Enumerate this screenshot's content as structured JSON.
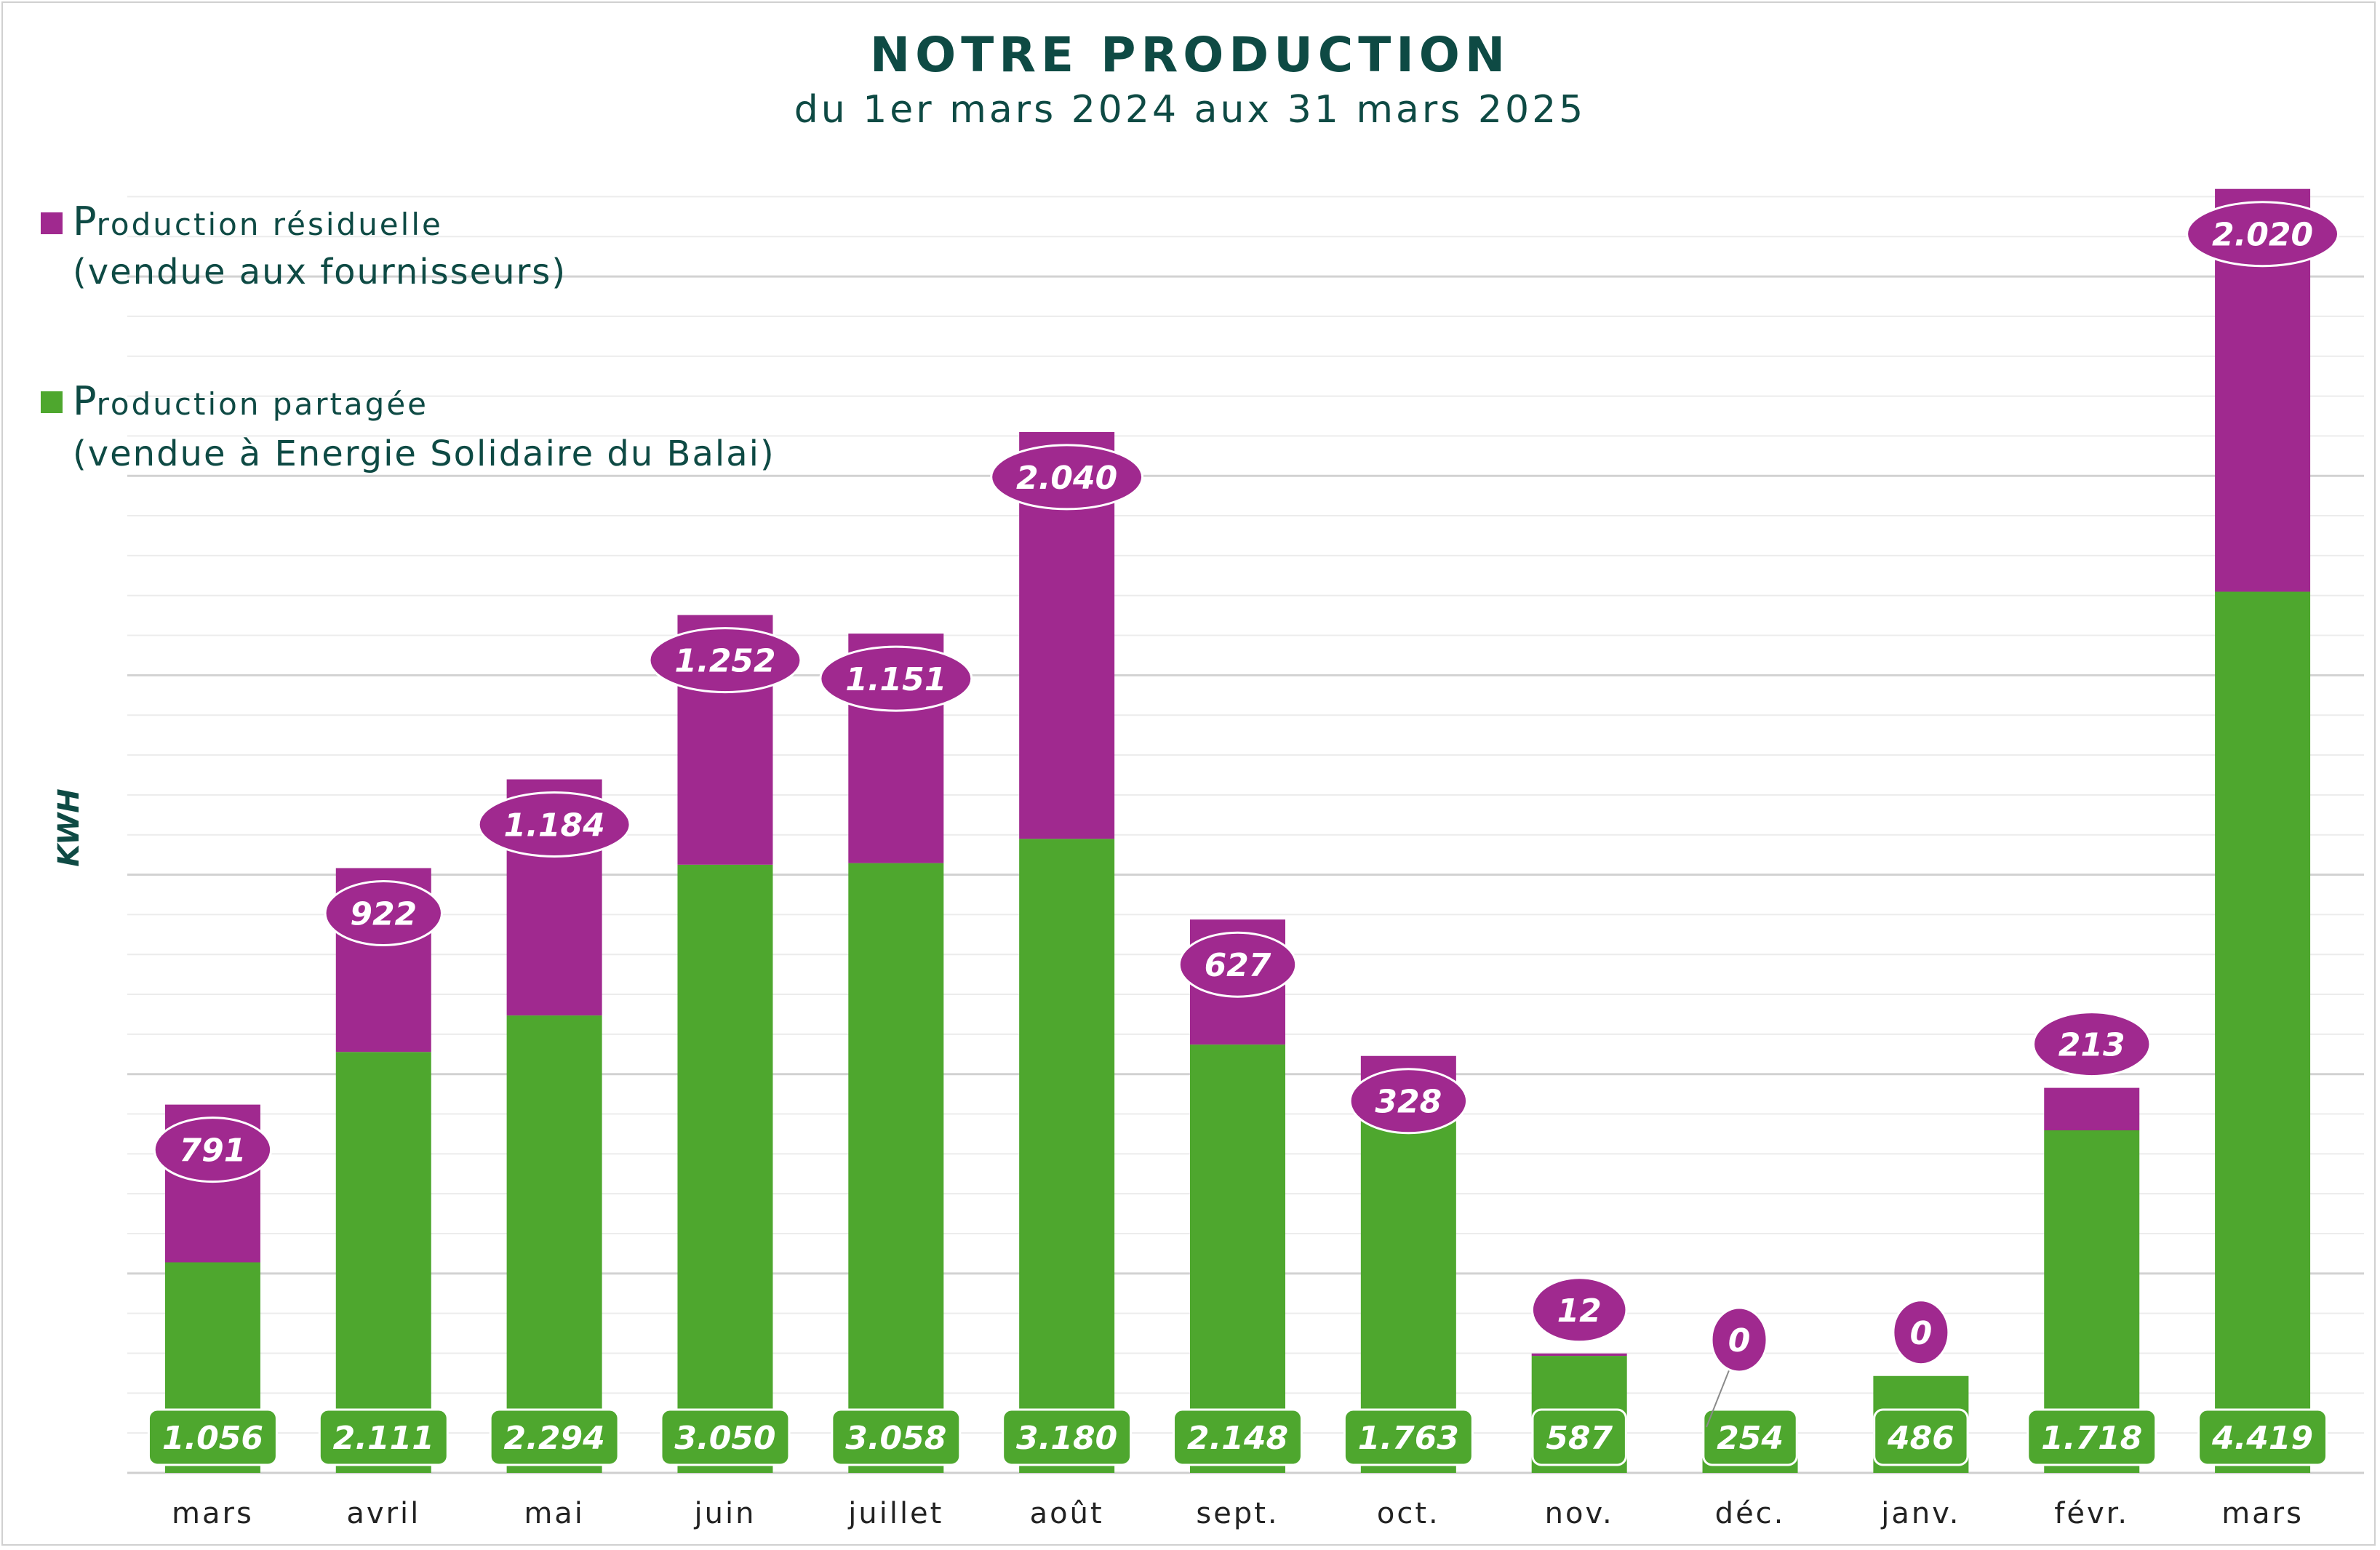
{
  "chart_data": {
    "type": "bar",
    "stacked": true,
    "title": "NOTRE PRODUCTION",
    "subtitle": "du 1er mars 2024 aux 31 mars 2025",
    "ylabel": "KWH",
    "xlabel": "",
    "ylim": [
      0,
      6500
    ],
    "grid": true,
    "legend_position": "top-left",
    "categories": [
      "mars",
      "avril",
      "mai",
      "juin",
      "juillet",
      "août",
      "sept.",
      "oct.",
      "nov.",
      "déc.",
      "janv.",
      "févr.",
      "mars"
    ],
    "series": [
      {
        "legend_line1_lead": "P",
        "legend_line1_rest": "roduction résiduelle",
        "legend_line2": "(vendue aux fournisseurs)",
        "color": "#a0298f",
        "values": [
          791,
          922,
          1184,
          1252,
          1151,
          2040,
          627,
          328,
          12,
          0,
          0,
          213,
          2020
        ],
        "labels": [
          "791",
          "922",
          "1.184",
          "1.252",
          "1.151",
          "2.040",
          "627",
          "328",
          "12",
          "0",
          "0",
          "213",
          "2.020"
        ]
      },
      {
        "legend_line1_lead": "P",
        "legend_line1_rest": "roduction partagée",
        "legend_line2": "(vendue à Energie Solidaire du Balai)",
        "color": "#4ea72e",
        "values": [
          1056,
          2111,
          2294,
          3050,
          3058,
          3180,
          2148,
          1763,
          587,
          254,
          486,
          1718,
          4419
        ],
        "labels": [
          "1.056",
          "2.111",
          "2.294",
          "3.050",
          "3.058",
          "3.180",
          "2.148",
          "1.763",
          "587",
          "254",
          "486",
          "1.718",
          "4.419"
        ]
      }
    ]
  }
}
